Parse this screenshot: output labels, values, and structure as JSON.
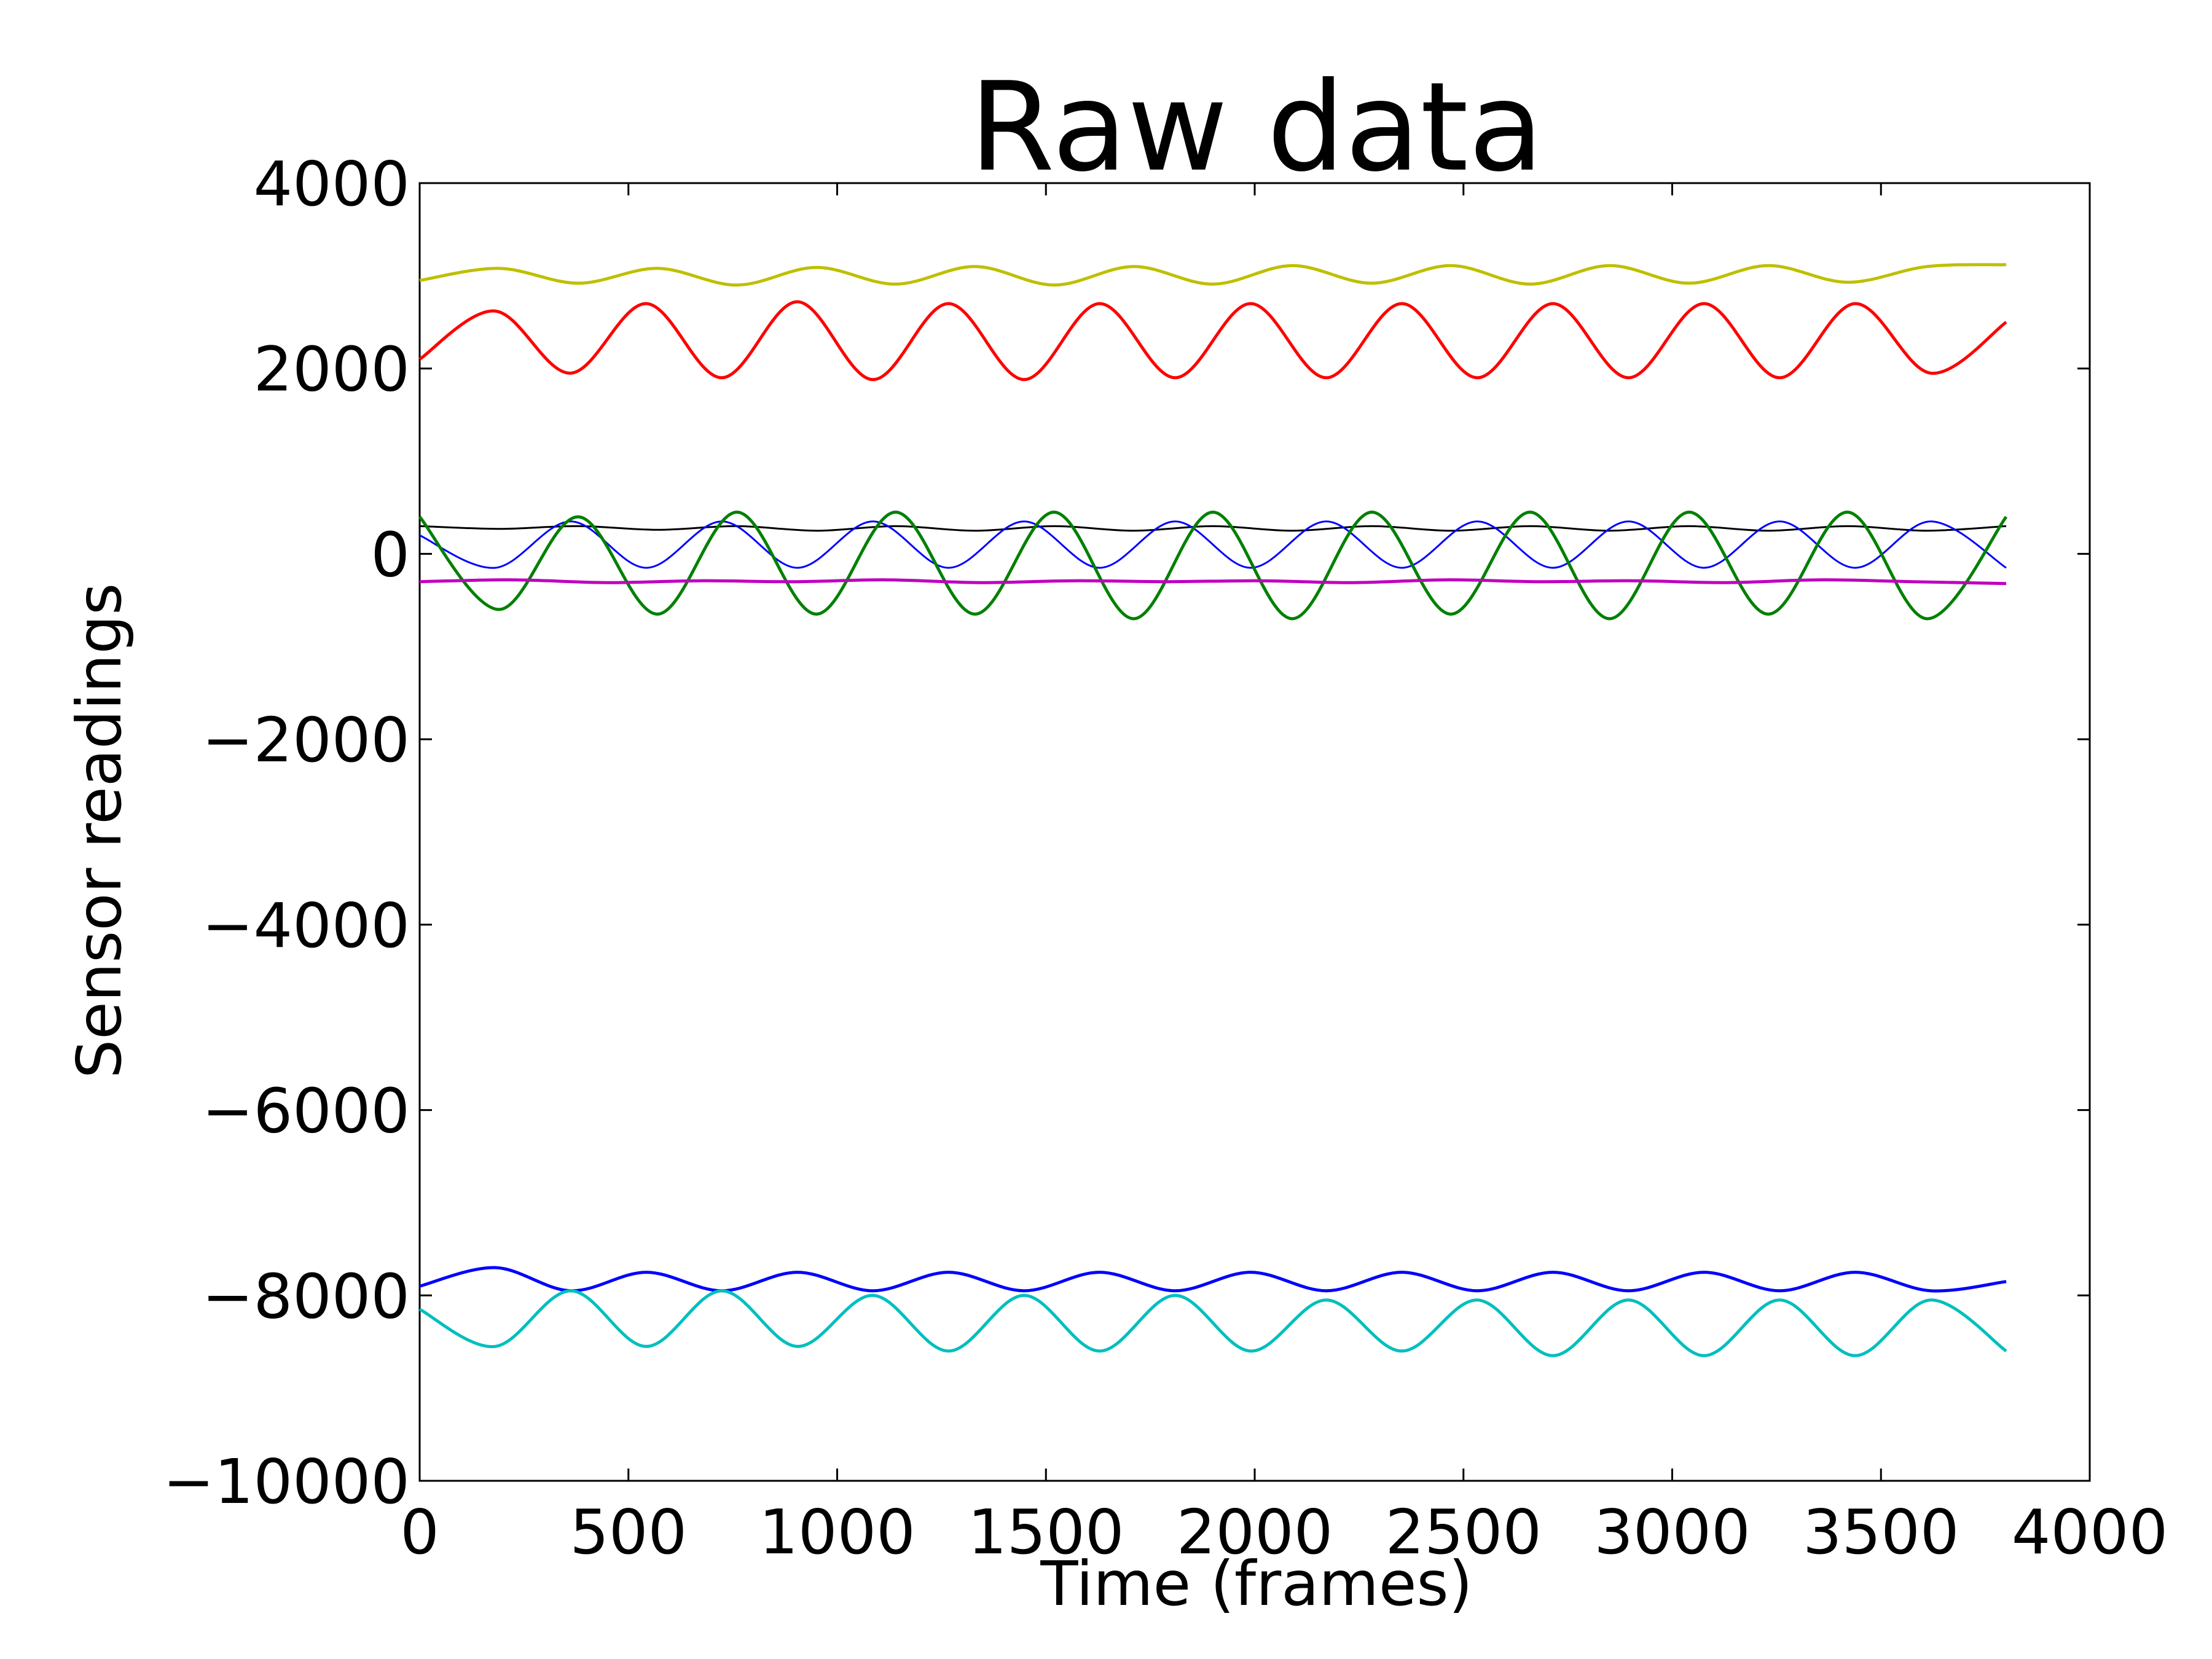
{
  "chart_data": {
    "type": "line",
    "title": "Raw data",
    "xlabel": "Time (frames)",
    "ylabel": "Sensor readings",
    "xlim": [
      0,
      4000
    ],
    "ylim": [
      -10000,
      4000
    ],
    "x_ticks": [
      0,
      500,
      1000,
      1500,
      2000,
      2500,
      3000,
      3500,
      4000
    ],
    "y_ticks": [
      -10000,
      -8000,
      -6000,
      -4000,
      -2000,
      0,
      2000,
      4000
    ],
    "x_tick_labels": [
      "0",
      "500",
      "1000",
      "1500",
      "2000",
      "2500",
      "3000",
      "3500",
      "4000"
    ],
    "y_tick_labels": [
      "−10000",
      "−8000",
      "−6000",
      "−4000",
      "−2000",
      "0",
      "2000",
      "4000"
    ],
    "grid": false,
    "x_range_of_data": [
      0,
      3800
    ],
    "series": [
      {
        "color": "#bfbf00",
        "values": [
          2950,
          3080,
          2920,
          3080,
          2900,
          3090,
          2910,
          3100,
          2900,
          3100,
          2910,
          3110,
          2920,
          3110,
          2910,
          3110,
          2920,
          3110,
          2930,
          3100,
          3120
        ]
      },
      {
        "color": "#ff0000",
        "values": [
          2100,
          2620,
          1950,
          2700,
          1900,
          2720,
          1880,
          2700,
          1880,
          2700,
          1900,
          2700,
          1900,
          2700,
          1900,
          2700,
          1900,
          2700,
          1900,
          2700,
          1950,
          2500
        ]
      },
      {
        "color": "#000000",
        "values": [
          300,
          270,
          300,
          260,
          300,
          250,
          300,
          250,
          300,
          250,
          300,
          250,
          300,
          250,
          300,
          250,
          300,
          250,
          300,
          250,
          300
        ]
      },
      {
        "color": "#0000ff",
        "values": [
          200,
          -150,
          350,
          -150,
          350,
          -150,
          350,
          -150,
          350,
          -150,
          350,
          -150,
          350,
          -150,
          350,
          -150,
          350,
          -150,
          350,
          -150,
          350,
          -150
        ]
      },
      {
        "color": "#008000",
        "values": [
          400,
          -600,
          400,
          -650,
          450,
          -650,
          450,
          -650,
          450,
          -700,
          450,
          -700,
          450,
          -650,
          450,
          -700,
          450,
          -650,
          450,
          -700,
          400
        ]
      },
      {
        "color": "#bf00bf",
        "values": [
          -300,
          -280,
          -310,
          -290,
          -300,
          -280,
          -310,
          -290,
          -300,
          -290,
          -310,
          -280,
          -300,
          -290,
          -310,
          -280,
          -300,
          -320
        ]
      },
      {
        "color": "#0000ff",
        "values": [
          -7900,
          -7700,
          -7950,
          -7750,
          -7950,
          -7750,
          -7950,
          -7750,
          -7950,
          -7750,
          -7950,
          -7750,
          -7950,
          -7750,
          -7950,
          -7750,
          -7950,
          -7750,
          -7950,
          -7750,
          -7950,
          -7850
        ]
      },
      {
        "color": "#00bfbf",
        "values": [
          -8150,
          -8550,
          -7950,
          -8550,
          -7950,
          -8550,
          -8000,
          -8600,
          -8000,
          -8600,
          -8000,
          -8600,
          -8050,
          -8600,
          -8050,
          -8650,
          -8050,
          -8650,
          -8050,
          -8650,
          -8050,
          -8600
        ]
      }
    ]
  }
}
